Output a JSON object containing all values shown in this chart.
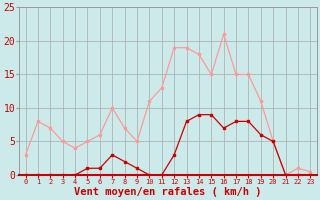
{
  "hours": [
    0,
    1,
    2,
    3,
    4,
    5,
    6,
    7,
    8,
    9,
    10,
    11,
    12,
    13,
    14,
    15,
    16,
    17,
    18,
    19,
    20,
    21,
    22,
    23
  ],
  "wind_avg": [
    0,
    0,
    0,
    0,
    0,
    1,
    1,
    3,
    2,
    1,
    0,
    0,
    3,
    8,
    9,
    9,
    7,
    8,
    8,
    6,
    5,
    0,
    0,
    0
  ],
  "wind_gust": [
    3,
    8,
    7,
    5,
    4,
    5,
    6,
    10,
    7,
    5,
    11,
    13,
    19,
    19,
    18,
    15,
    21,
    15,
    15,
    11,
    5,
    0,
    1,
    0.5
  ],
  "color_avg": "#cc0000",
  "color_gust": "#ff9999",
  "bg_color": "#cceaea",
  "grid_color": "#aaaaaa",
  "axis_color": "#cc0000",
  "xlabel": "Vent moyen/en rafales ( km/h )",
  "ylim": [
    0,
    25
  ],
  "yticks": [
    0,
    5,
    10,
    15,
    20,
    25
  ]
}
